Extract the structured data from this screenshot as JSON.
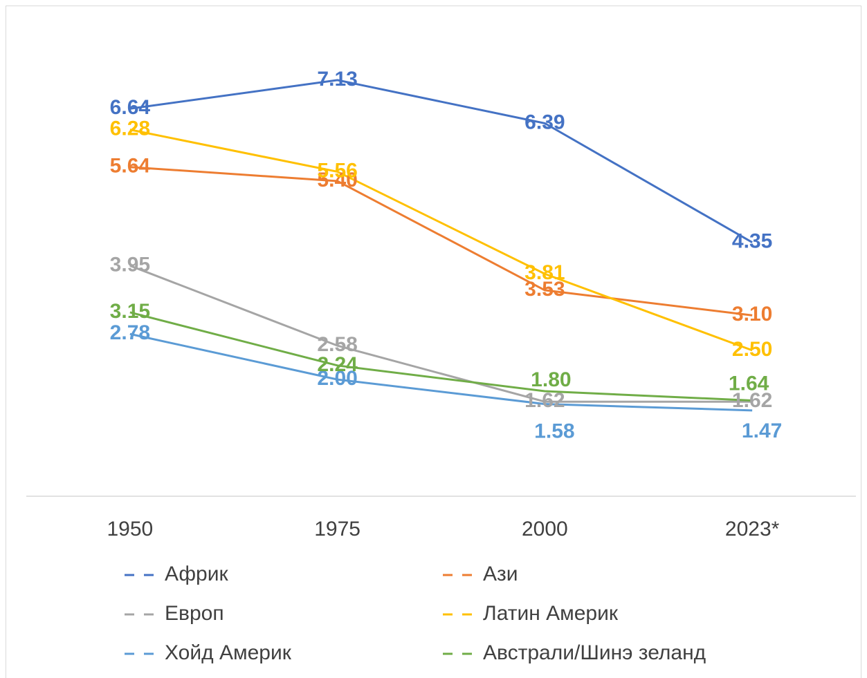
{
  "chart_data": {
    "type": "line",
    "categories": [
      "1950",
      "1975",
      "2000",
      "2023*"
    ],
    "ylim": [
      0,
      8
    ],
    "series": [
      {
        "name": "Африк",
        "color": "#4472c4",
        "values": [
          6.64,
          7.13,
          6.39,
          4.35
        ],
        "value_labels": [
          "6.64",
          "7.13",
          "6.39",
          "4.35"
        ]
      },
      {
        "name": "Ази",
        "color": "#ed7d31",
        "values": [
          5.64,
          5.4,
          3.53,
          3.1
        ],
        "value_labels": [
          "5.64",
          "5.40",
          "3.53",
          "3.10"
        ]
      },
      {
        "name": "Европ",
        "color": "#a5a5a5",
        "values": [
          3.95,
          2.58,
          1.62,
          1.62
        ],
        "value_labels": [
          "3.95",
          "2.58",
          "1.62",
          "1.62"
        ]
      },
      {
        "name": "Латин Америк",
        "color": "#ffc000",
        "values": [
          6.28,
          5.56,
          3.81,
          2.5
        ],
        "value_labels": [
          "6.28",
          "5.56",
          "3.81",
          "2.50"
        ]
      },
      {
        "name": "Хойд Америк",
        "color": "#5b9bd5",
        "values": [
          2.78,
          2.0,
          1.58,
          1.47
        ],
        "value_labels": [
          "2.78",
          "2.00",
          "1.58",
          "1.47"
        ]
      },
      {
        "name": "Австрали/Шинэ зеланд",
        "color": "#70ad47",
        "values": [
          3.15,
          2.24,
          1.8,
          1.64
        ],
        "value_labels": [
          "3.15",
          "2.24",
          "1.80",
          "1.64"
        ]
      }
    ]
  }
}
